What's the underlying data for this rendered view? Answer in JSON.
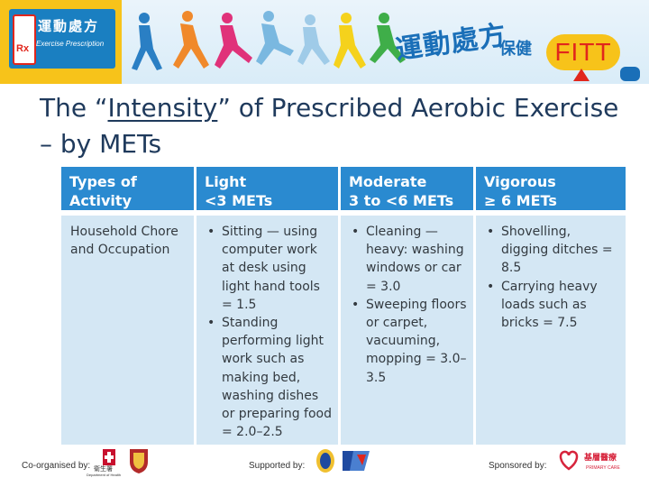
{
  "banner": {
    "logo_chinese": "運動處方",
    "logo_english": "Exercise Prescription",
    "logo_rx": "Rx",
    "banner_chinese": "運動處方",
    "banner_chinese_small": "保健",
    "fitt_text": "FITT",
    "colors": {
      "accent_yellow": "#f7c31a",
      "accent_blue": "#1a7fc1",
      "accent_red": "#e1261c"
    }
  },
  "title": {
    "prefix": "The “",
    "emphasis": "Intensity",
    "suffix": "” of Prescribed Aerobic Exercise – by METs"
  },
  "table": {
    "headers": [
      {
        "line1": "Types of Activity",
        "line2": ""
      },
      {
        "line1": "Light",
        "line2": "<3 METs"
      },
      {
        "line1": "Moderate",
        "line2": "3 to <6 METs"
      },
      {
        "line1": "Vigorous",
        "line2": "≥ 6 METs"
      }
    ],
    "row": {
      "activity": "Household Chore and Occupation",
      "light": [
        "Sitting — using computer work at desk using light hand tools = 1.5",
        "Standing performing light work such as making bed, washing dishes or preparing food = 2.0–2.5"
      ],
      "moderate": [
        "Cleaning — heavy: washing windows or car = 3.0",
        "Sweeping floors or carpet, vacuuming, mopping = 3.0–3.5"
      ],
      "vigorous": [
        "Shovelling, digging ditches = 8.5",
        "Carrying heavy loads such as bricks = 7.5"
      ]
    },
    "colors": {
      "header_bg": "#2a8ad0",
      "body_bg": "#d4e7f4"
    }
  },
  "footer": {
    "co_organised": "Co-organised by:",
    "supported": "Supported by:",
    "sponsored": "Sponsored by:",
    "dh_label": "衛生署",
    "dh_sub": "Department of Health",
    "sponsor_chinese": "基層醫療",
    "sponsor_english": "PRIMARY CARE"
  }
}
